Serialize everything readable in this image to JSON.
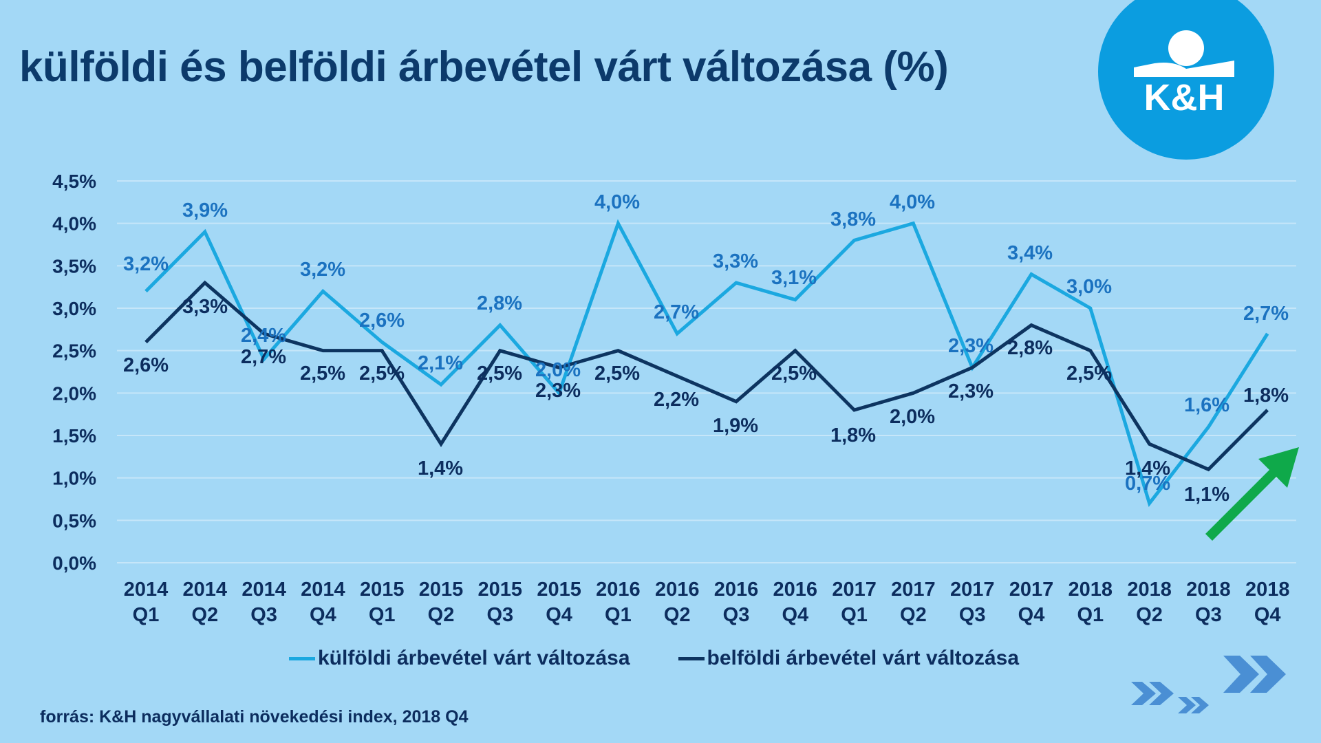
{
  "title": "külföldi és belföldi árbevétel várt változása (%)",
  "logo": {
    "text": "K&H",
    "icon": "kh-bank-logo"
  },
  "source": "forrás: K&H nagyvállalati növekedési index, 2018 Q4",
  "colors": {
    "background": "#a3d8f6",
    "gridline": "#c6e6f9",
    "series_foreign": "#1ba8e0",
    "series_foreign_label": "#1b72c0",
    "series_domestic": "#0d3460",
    "series_domestic_label": "#0c2d5e",
    "logo_circle": "#0b9de0",
    "arrow": "#0fa94a",
    "chevrons": "#4a8fd4"
  },
  "chart_data": {
    "type": "line",
    "title": "külföldi és belföldi árbevétel várt változása (%)",
    "xlabel": "",
    "ylabel": "",
    "ylim": [
      0,
      4.5
    ],
    "grid": true,
    "legend_position": "bottom",
    "categories": [
      [
        "2014",
        "Q1"
      ],
      [
        "2014",
        "Q2"
      ],
      [
        "2014",
        "Q3"
      ],
      [
        "2014",
        "Q4"
      ],
      [
        "2015",
        "Q1"
      ],
      [
        "2015",
        "Q2"
      ],
      [
        "2015",
        "Q3"
      ],
      [
        "2015",
        "Q4"
      ],
      [
        "2016",
        "Q1"
      ],
      [
        "2016",
        "Q2"
      ],
      [
        "2016",
        "Q3"
      ],
      [
        "2016",
        "Q4"
      ],
      [
        "2017",
        "Q1"
      ],
      [
        "2017",
        "Q2"
      ],
      [
        "2017",
        "Q3"
      ],
      [
        "2017",
        "Q4"
      ],
      [
        "2018",
        "Q1"
      ],
      [
        "2018",
        "Q2"
      ],
      [
        "2018",
        "Q3"
      ],
      [
        "2018",
        "Q4"
      ]
    ],
    "yticks": [
      "0,0%",
      "0,5%",
      "1,0%",
      "1,5%",
      "2,0%",
      "2,5%",
      "3,0%",
      "3,5%",
      "4,0%",
      "4,5%"
    ],
    "series": [
      {
        "name": "külföldi árbevétel várt változása",
        "key": "foreign",
        "values": [
          3.2,
          3.9,
          2.4,
          3.2,
          2.6,
          2.1,
          2.8,
          2.0,
          4.0,
          2.7,
          3.3,
          3.1,
          3.8,
          4.0,
          2.3,
          3.4,
          3.0,
          0.7,
          1.6,
          2.7
        ],
        "labels": [
          "3,2%",
          "3,9%",
          "2,4%",
          "3,2%",
          "2,6%",
          "2,1%",
          "2,8%",
          "2,0%",
          "4,0%",
          "2,7%",
          "3,3%",
          "3,1%",
          "3,8%",
          "4,0%",
          "2,3%",
          "3,4%",
          "3,0%",
          "0,7%",
          "1,6%",
          "2,7%"
        ]
      },
      {
        "name": "belföldi árbevétel várt változása",
        "key": "domestic",
        "values": [
          2.6,
          3.3,
          2.7,
          2.5,
          2.5,
          1.4,
          2.5,
          2.3,
          2.5,
          2.2,
          1.9,
          2.5,
          1.8,
          2.0,
          2.3,
          2.8,
          2.5,
          1.4,
          1.1,
          1.8
        ],
        "labels": [
          "2,6%",
          "3,3%",
          "2,7%",
          "2,5%",
          "2,5%",
          "1,4%",
          "2,5%",
          "2,3%",
          "2,5%",
          "2,2%",
          "1,9%",
          "2,5%",
          "1,8%",
          "2,0%",
          "2,3%",
          "2,8%",
          "2,5%",
          "1,4%",
          "1,1%",
          "1,8%"
        ]
      }
    ],
    "annotations": [
      {
        "type": "arrow",
        "direction": "up-right",
        "meaning": "upward trend",
        "color": "green"
      }
    ]
  },
  "legend": [
    {
      "label": "külföldi árbevétel várt változása",
      "series": "foreign"
    },
    {
      "label": "belföldi árbevétel várt változása",
      "series": "domestic"
    }
  ]
}
